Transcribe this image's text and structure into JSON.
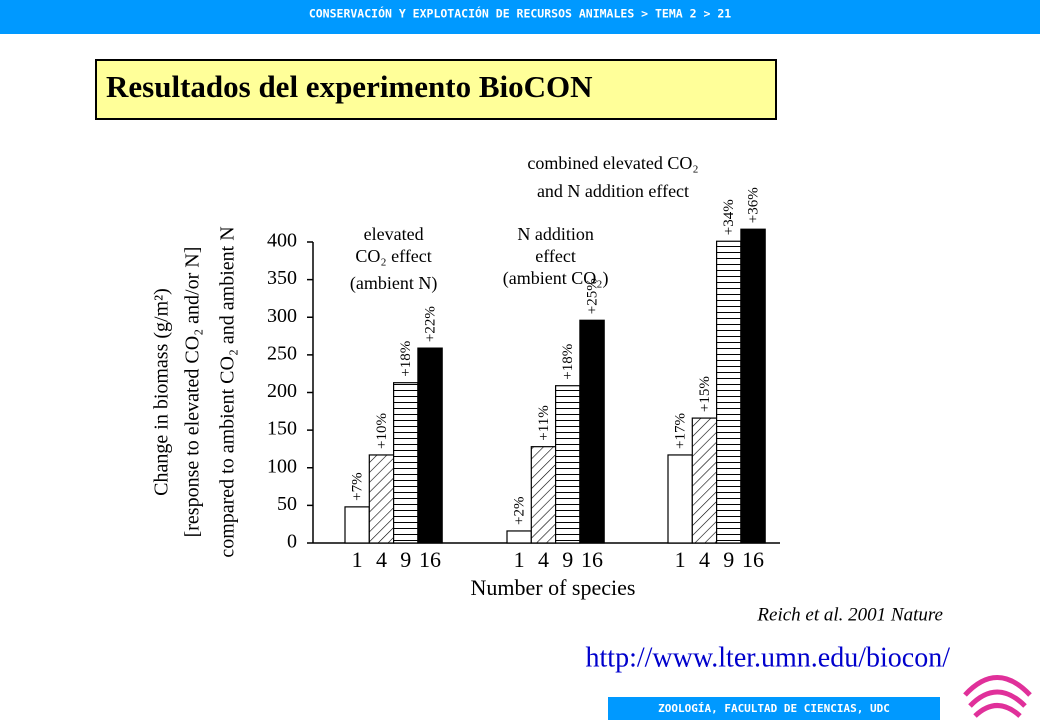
{
  "header": {
    "text": "CONSERVACIÓN Y EXPLOTACIÓN DE RECURSOS ANIMALES > TEMA 2 > 21"
  },
  "footer": {
    "text": "ZOOLOGÍA, FACULTAD DE CIENCIAS, UDC"
  },
  "slide_title": "Resultados del experimento  BioCON",
  "citation": "Reich et al. 2001 Nature",
  "url": "http://www.lter.umn.edu/biocon/",
  "chart_data": {
    "type": "bar",
    "ylabel": [
      "Change in biomass (g/m²)",
      "[response to elevated CO₂ and/or N]",
      "compared to ambient CO₂ and ambient N"
    ],
    "xlabel": "Number of species",
    "categories": [
      [
        "elevated",
        "CO₂ effect",
        "(ambient N)"
      ],
      [
        "N addition",
        "effect",
        "(ambient CO₂)"
      ],
      [
        "combined elevated CO₂",
        "and N addition effect"
      ]
    ],
    "series": [
      {
        "name": "1",
        "color": "#ffffff",
        "pattern": "solid",
        "values": [
          48,
          16,
          117
        ],
        "percent_labels": [
          "+7%",
          "+2%",
          "+17%"
        ]
      },
      {
        "name": "4",
        "color": "#ffffff",
        "pattern": "diagonal",
        "values": [
          117,
          128,
          166
        ],
        "percent_labels": [
          "+10%",
          "+11%",
          "+15%"
        ]
      },
      {
        "name": "9",
        "color": "#ffffff",
        "pattern": "horizontal",
        "values": [
          213,
          209,
          401
        ],
        "percent_labels": [
          "+18%",
          "+18%",
          "+34%"
        ]
      },
      {
        "name": "16",
        "color": "#000000",
        "pattern": "solid",
        "values": [
          259,
          296,
          417
        ],
        "percent_labels": [
          "+22%",
          "+25%",
          "+36%"
        ]
      }
    ],
    "ylim": [
      0,
      400
    ],
    "yticks": [
      0,
      50,
      100,
      150,
      200,
      250,
      300,
      350,
      400
    ]
  }
}
